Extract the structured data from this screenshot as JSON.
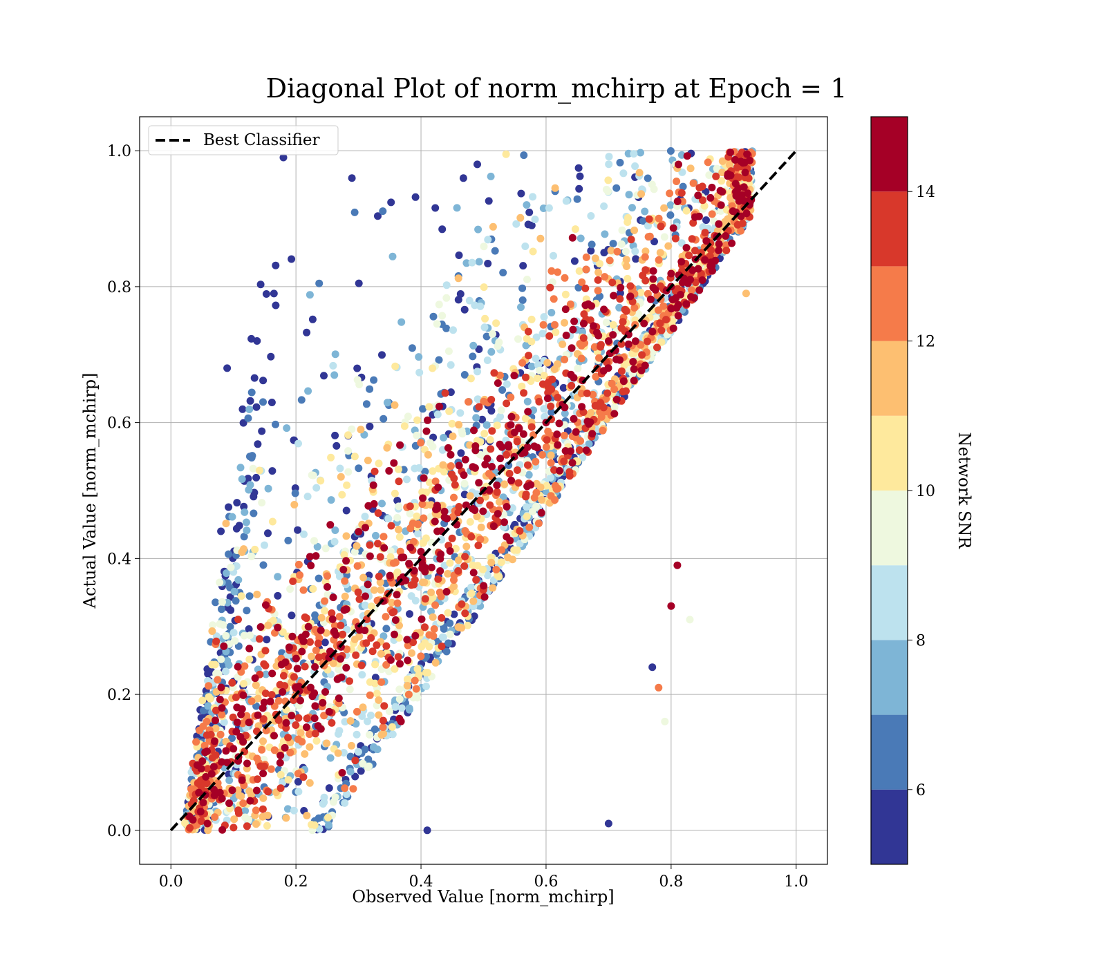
{
  "chart_data": {
    "type": "scatter",
    "title": "Diagonal Plot of norm_mchirp at Epoch = 1",
    "xlabel": "Observed Value [norm_mchirp]",
    "ylabel": "Actual Value [norm_mchirp]",
    "xlim": [
      -0.05,
      1.05
    ],
    "ylim": [
      -0.05,
      1.05
    ],
    "xticks": [
      "0.0",
      "0.2",
      "0.4",
      "0.6",
      "0.8",
      "1.0"
    ],
    "yticks": [
      "0.0",
      "0.2",
      "0.4",
      "0.6",
      "0.8",
      "1.0"
    ],
    "grid": true,
    "legend": {
      "position": "upper-left",
      "entries": [
        "Best Classifier"
      ]
    },
    "reference_line": {
      "name": "Best Classifier",
      "style": "dashed",
      "color": "#000000",
      "x": [
        0.0,
        1.0
      ],
      "y": [
        0.0,
        1.0
      ]
    },
    "colorbar": {
      "label": "Network SNR",
      "range": [
        5,
        15
      ],
      "ticks": [
        "6",
        "8",
        "10",
        "12",
        "14"
      ],
      "tick_values": [
        6,
        8,
        10,
        12,
        14
      ],
      "bins": [
        {
          "from": 5,
          "to": 6,
          "color": "#313695"
        },
        {
          "from": 6,
          "to": 7,
          "color": "#4a7ab7"
        },
        {
          "from": 7,
          "to": 8,
          "color": "#7eb5d6"
        },
        {
          "from": 8,
          "to": 9,
          "color": "#bde2ee"
        },
        {
          "from": 9,
          "to": 10,
          "color": "#eef8df"
        },
        {
          "from": 10,
          "to": 11,
          "color": "#fee99d"
        },
        {
          "from": 11,
          "to": 12,
          "color": "#fdbf71"
        },
        {
          "from": 12,
          "to": 13,
          "color": "#f57b4a"
        },
        {
          "from": 13,
          "to": 14,
          "color": "#d8382b"
        },
        {
          "from": 14,
          "to": 15,
          "color": "#a50026"
        }
      ]
    },
    "series": [
      {
        "points_description_x_range": [
          0.02,
          0.93
        ],
        "points_description_y_range": [
          0.0,
          1.0
        ],
        "snr_range": [
          5,
          15
        ],
        "sample_points": [
          {
            "x": 0.03,
            "y": 0.02,
            "snr": 15
          },
          {
            "x": 0.1,
            "y": 0.12,
            "snr": 15
          },
          {
            "x": 0.2,
            "y": 0.21,
            "snr": 15
          },
          {
            "x": 0.3,
            "y": 0.3,
            "snr": 15
          },
          {
            "x": 0.4,
            "y": 0.41,
            "snr": 15
          },
          {
            "x": 0.5,
            "y": 0.5,
            "snr": 15
          },
          {
            "x": 0.6,
            "y": 0.6,
            "snr": 15
          },
          {
            "x": 0.7,
            "y": 0.72,
            "snr": 15
          },
          {
            "x": 0.8,
            "y": 0.8,
            "snr": 15
          },
          {
            "x": 0.88,
            "y": 0.92,
            "snr": 15
          },
          {
            "x": 0.18,
            "y": 0.99,
            "snr": 5.5
          },
          {
            "x": 0.09,
            "y": 0.68,
            "snr": 5.5
          },
          {
            "x": 0.08,
            "y": 0.44,
            "snr": 5.5
          },
          {
            "x": 0.7,
            "y": 0.01,
            "snr": 5.5
          },
          {
            "x": 0.41,
            "y": 0.0,
            "snr": 5.5
          },
          {
            "x": 0.77,
            "y": 0.24,
            "snr": 5.5
          },
          {
            "x": 0.83,
            "y": 0.31,
            "snr": 9.5
          },
          {
            "x": 0.79,
            "y": 0.16,
            "snr": 9.5
          },
          {
            "x": 0.1,
            "y": 0.38,
            "snr": 8.5
          },
          {
            "x": 0.78,
            "y": 0.21,
            "snr": 12.5
          },
          {
            "x": 0.81,
            "y": 0.39,
            "snr": 15
          },
          {
            "x": 0.8,
            "y": 0.33,
            "snr": 15
          },
          {
            "x": 0.92,
            "y": 0.79,
            "snr": 11.5
          },
          {
            "x": 0.49,
            "y": 0.98,
            "snr": 5.5
          }
        ]
      }
    ]
  }
}
